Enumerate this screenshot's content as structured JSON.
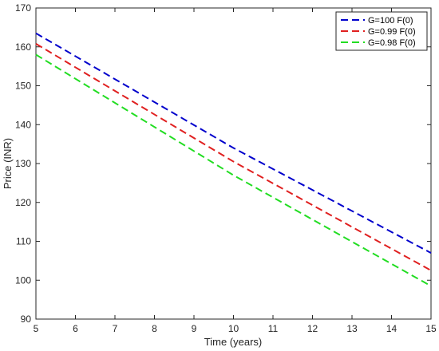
{
  "chart_data": {
    "type": "line",
    "title": "",
    "xlabel": "Time (years)",
    "ylabel": "Price (INR)",
    "xlim": [
      5,
      15
    ],
    "ylim": [
      90,
      170
    ],
    "xticks": [
      5,
      6,
      7,
      8,
      9,
      10,
      11,
      12,
      13,
      14,
      15
    ],
    "yticks": [
      90,
      100,
      110,
      120,
      130,
      140,
      150,
      160,
      170
    ],
    "grid": false,
    "legend_position": "top-right",
    "series": [
      {
        "name": "G=100 F(0)",
        "color": "#0000cc",
        "line_style": "dashed",
        "x": [
          5,
          10,
          15
        ],
        "y": [
          163.5,
          134.0,
          107.0
        ]
      },
      {
        "name": "G=0.99 F(0)",
        "color": "#e02020",
        "line_style": "dashed",
        "x": [
          5,
          10,
          15
        ],
        "y": [
          160.8,
          130.5,
          102.5
        ]
      },
      {
        "name": "G=0.98 F(0)",
        "color": "#22dd22",
        "line_style": "dashed",
        "x": [
          5,
          10,
          15
        ],
        "y": [
          158.0,
          127.0,
          98.5
        ]
      }
    ]
  }
}
